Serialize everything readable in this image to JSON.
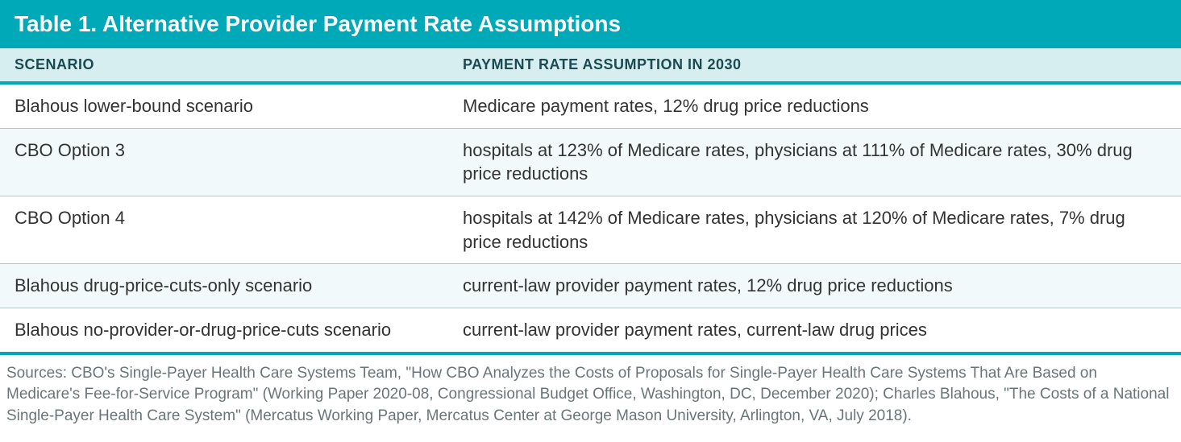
{
  "table": {
    "title": "Table 1. Alternative Provider Payment Rate Assumptions",
    "columns": [
      "SCENARIO",
      "PAYMENT RATE ASSUMPTION IN 2030"
    ],
    "rows": [
      [
        "Blahous lower-bound scenario",
        "Medicare payment rates, 12% drug price reductions"
      ],
      [
        "CBO Option 3",
        "hospitals at 123% of Medicare rates, physicians at 111% of Medicare rates, 30% drug price reductions"
      ],
      [
        "CBO Option 4",
        "hospitals at 142% of Medicare rates, physicians at 120% of Medicare rates, 7% drug price reductions"
      ],
      [
        "Blahous drug-price-cuts-only scenario",
        "current-law provider payment rates, 12% drug price reductions"
      ],
      [
        "Blahous no-provider-or-drug-price-cuts scenario",
        "current-law provider payment rates, current-law drug prices"
      ]
    ],
    "title_bg": "#00a9b7",
    "title_color": "#ffffff",
    "header_bg": "#d6eef0",
    "header_color": "#1a4a52",
    "row_alt_bg": "#f2f9fa",
    "border_color": "#00a9b7",
    "cell_border_color": "#b8c7ca",
    "title_fontsize": 28,
    "header_fontsize": 18,
    "cell_fontsize": 22,
    "col_scenario_width": 520
  },
  "sources": "Sources: CBO's Single-Payer Health Care Systems Team, \"How CBO Analyzes the Costs of Proposals for Single-Payer Health Care Systems That Are Based on Medicare's Fee-for-Service Program\" (Working Paper 2020-08, Congressional Budget Office, Washington, DC, December 2020); Charles Blahous, \"The Costs of a National Single-Payer Health Care System\" (Mercatus Working Paper, Mercatus Center at George Mason University, Arlington, VA, July 2018)."
}
